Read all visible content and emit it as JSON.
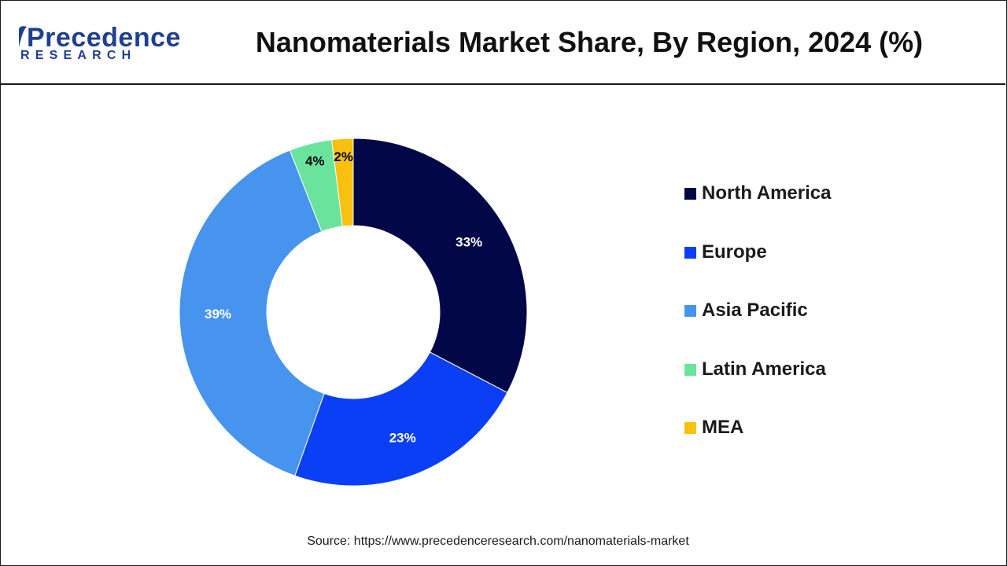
{
  "brand": {
    "name": "Precedence",
    "sub": "RESEARCH"
  },
  "colors": {
    "brand": "#1f3f94"
  },
  "chart_data": {
    "type": "pie",
    "title": "Nanomaterials Market Share, By Region, 2024 (%)",
    "style": "donut",
    "categories": [
      "North America",
      "Europe",
      "Asia Pacific",
      "Latin America",
      "MEA"
    ],
    "values": [
      33,
      23,
      39,
      4,
      2
    ],
    "labels": [
      "33%",
      "23%",
      "39%",
      "4%",
      "2%"
    ],
    "colors": [
      "#020748",
      "#0a3ff5",
      "#4794ee",
      "#6ae49d",
      "#f8c10f"
    ],
    "legend_position": "right",
    "source": "Source: https://www.precedenceresearch.com/nanomaterials-market"
  }
}
